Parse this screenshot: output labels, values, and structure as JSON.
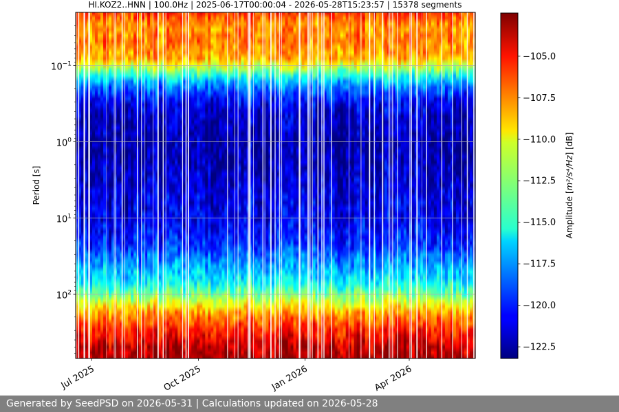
{
  "chart_data": {
    "type": "heatmap",
    "title": "HI.KOZ2..HNN | 100.0Hz | 2025-06-17T00:00:04 - 2026-05-28T15:23:57 | 15378 segments",
    "ylabel": "Period [s]",
    "yscale": "log",
    "ylim": [
      0.02,
      700
    ],
    "y_inverted": true,
    "yticks": [
      {
        "value": 0.1,
        "base": "10",
        "exp": "−1"
      },
      {
        "value": 1,
        "base": "10",
        "exp": "0"
      },
      {
        "value": 10,
        "base": "10",
        "exp": "1"
      },
      {
        "value": 100,
        "base": "10",
        "exp": "2"
      }
    ],
    "xlim": [
      "2025-06-17",
      "2026-05-28"
    ],
    "xticks": [
      {
        "date": "2025-07-01",
        "label": "Jul 2025"
      },
      {
        "date": "2025-10-01",
        "label": "Oct 2025"
      },
      {
        "date": "2026-01-01",
        "label": "Jan 2026"
      },
      {
        "date": "2026-04-01",
        "label": "Apr 2026"
      }
    ],
    "grid": true,
    "colorbar": {
      "label_prefix": "Amplitude [",
      "label_unit": "m²/s⁴/Hz",
      "label_suffix": "] [dB]",
      "colormap": "jet",
      "range": [
        -123.2,
        -102.4
      ],
      "ticks": [
        -105.0,
        -107.5,
        -110.0,
        -112.5,
        -115.0,
        -117.5,
        -120.0,
        -122.5
      ],
      "tick_labels": [
        "−105.0",
        "−107.5",
        "−110.0",
        "−112.5",
        "−115.0",
        "−117.5",
        "−120.0",
        "−122.5"
      ]
    },
    "amplitude_profile": {
      "periods": [
        0.02,
        0.03,
        0.05,
        0.08,
        0.1,
        0.15,
        0.2,
        0.3,
        0.5,
        1,
        2,
        5,
        10,
        20,
        40,
        70,
        100,
        150,
        200,
        300,
        500,
        700
      ],
      "db": [
        -106.0,
        -108.0,
        -107.5,
        -108.5,
        -111.0,
        -116.0,
        -118.5,
        -120.8,
        -121.8,
        -122.2,
        -122.0,
        -121.2,
        -121.0,
        -120.0,
        -117.5,
        -115.5,
        -113.0,
        -109.5,
        -107.5,
        -105.5,
        -103.8,
        -103.0
      ]
    }
  },
  "footer": {
    "text": "Generated by SeedPSD on 2026-05-31 | Calculations updated on 2026-05-28"
  }
}
